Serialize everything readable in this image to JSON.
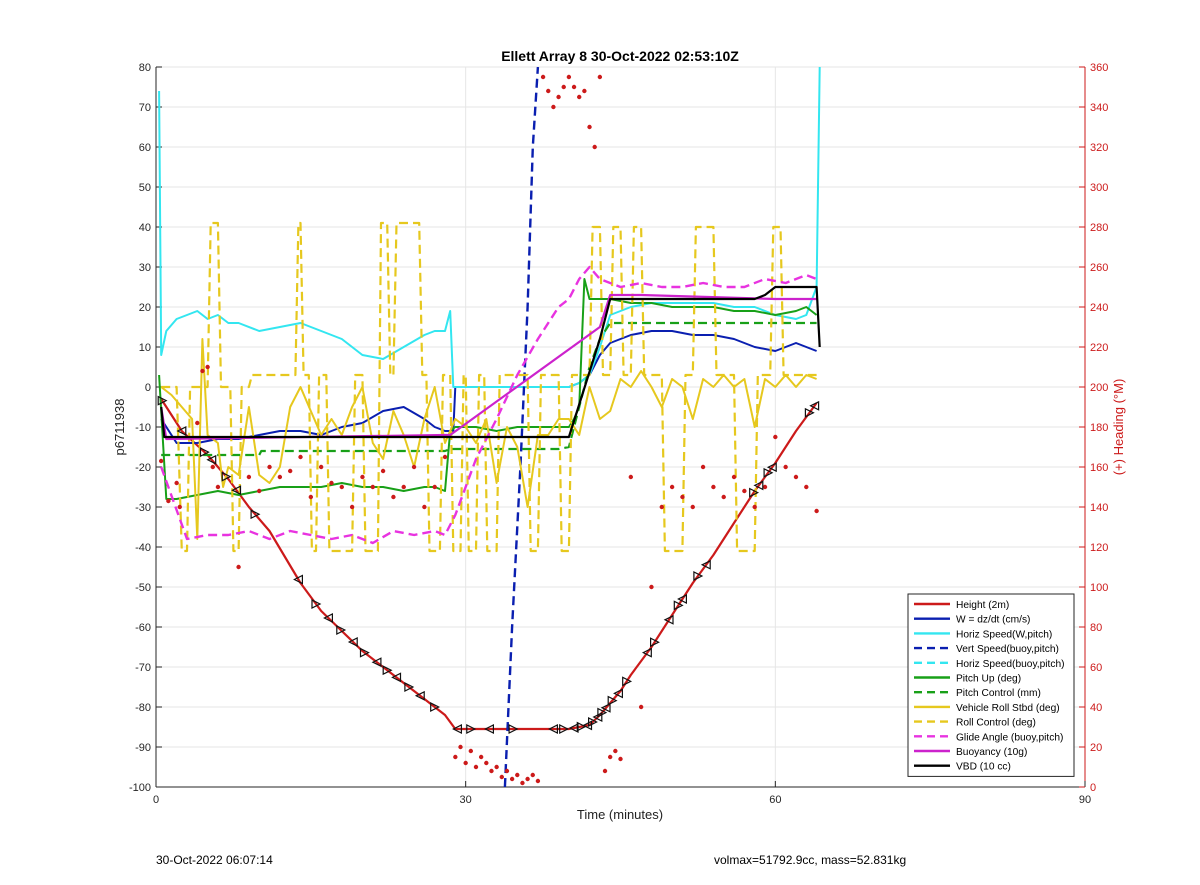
{
  "chart_data": {
    "type": "line",
    "title": "Ellett Array 8 30-Oct-2022 02:53:10Z",
    "xlabel": "Time (minutes)",
    "ylabel": "p6711938",
    "y2label": "(+) Heading (°M)",
    "xlim": [
      0,
      90
    ],
    "ylim": [
      -100,
      80
    ],
    "y2lim": [
      0,
      360
    ],
    "xticks": [
      0,
      30,
      60,
      90
    ],
    "yticks": [
      -100,
      -90,
      -80,
      -70,
      -60,
      -50,
      -40,
      -30,
      -20,
      -10,
      0,
      10,
      20,
      30,
      40,
      50,
      60,
      70,
      80
    ],
    "y2ticks": [
      0,
      20,
      40,
      60,
      80,
      100,
      120,
      140,
      160,
      180,
      200,
      220,
      240,
      260,
      280,
      300,
      320,
      340,
      360
    ],
    "grid": true,
    "legend_position": "bottom-right",
    "colors": {
      "height": "#cc1a1a",
      "w": "#0a1fb0",
      "horiz": "#33e6f0",
      "pitch": "#18a018",
      "roll": "#e6c81e",
      "glide": "#e833e0",
      "buoy": "#cc22cc",
      "vbd": "#000000",
      "heading": "#cc1a1a",
      "right_axis": "#cc1a1a"
    },
    "series": [
      {
        "name": "Height (2m)",
        "color": "#cc1a1a",
        "dash": false,
        "width": 2.2,
        "x": [
          0.5,
          2.5,
          5,
          7,
          9,
          11,
          14,
          16,
          18,
          20,
          22,
          24,
          26,
          28,
          29,
          33,
          38,
          40,
          42,
          43,
          44,
          45,
          46,
          48,
          50,
          52,
          54,
          56,
          58,
          60,
          62,
          64
        ],
        "y": [
          -3,
          -11,
          -17,
          -23,
          -30,
          -36,
          -49,
          -56,
          -61,
          -66,
          -70,
          -74,
          -78,
          -82,
          -85.5,
          -85.5,
          -85.5,
          -85.5,
          -84.5,
          -82,
          -79,
          -76,
          -72,
          -65,
          -57,
          -49,
          -42,
          -34,
          -26,
          -19,
          -11,
          -4
        ]
      },
      {
        "name": "W = dz/dt (cm/s)",
        "color": "#0a1fb0",
        "dash": false,
        "width": 2,
        "x": [
          0.5,
          2,
          4,
          6,
          8,
          10,
          12,
          14,
          16,
          18,
          20,
          22,
          24,
          26,
          27,
          28,
          28.8,
          29,
          32,
          35,
          38,
          40,
          41,
          42,
          43,
          44,
          46,
          48,
          50,
          52,
          54,
          56,
          58,
          60,
          62,
          64
        ],
        "y": [
          -8,
          -14,
          -14,
          -13,
          -13,
          -12,
          -11,
          -11,
          -12,
          -10,
          -9,
          -6,
          -5,
          -8,
          -10,
          -11,
          -11,
          0,
          0,
          0,
          0,
          0,
          1,
          3,
          8,
          11,
          13,
          14,
          14,
          13,
          13,
          12,
          10,
          9,
          11,
          9
        ]
      },
      {
        "name": "Horiz Speed(W,pitch)",
        "color": "#33e6f0",
        "dash": false,
        "width": 2,
        "x": [
          0.3,
          0.5,
          1,
          2,
          3,
          4,
          5,
          6,
          7,
          8,
          10,
          12,
          14,
          16,
          18,
          20,
          22,
          24,
          26,
          27,
          28,
          28.5,
          28.8,
          29,
          32,
          35,
          38,
          40,
          41,
          42,
          43,
          44,
          46,
          48,
          50,
          52,
          54,
          56,
          58,
          60,
          62,
          63,
          64,
          64.3
        ],
        "y": [
          74,
          8,
          14,
          17,
          18,
          19,
          17,
          18,
          16,
          16,
          14,
          15,
          16,
          14,
          12,
          8,
          7,
          10,
          13,
          14,
          14,
          19,
          0,
          0,
          0,
          0,
          0,
          0,
          1,
          3,
          10,
          18,
          20,
          21,
          21,
          21,
          21,
          20,
          20,
          18,
          17,
          18,
          25,
          80
        ]
      },
      {
        "name": "Vert Speed(buoy,pitch)",
        "color": "#0a1fb0",
        "dash": true,
        "width": 2.4,
        "x": [
          33.8,
          34.5,
          35.3,
          36,
          36.5,
          37
        ],
        "y": [
          -100,
          -60,
          -20,
          20,
          60,
          80
        ]
      },
      {
        "name": "Horiz Speed(buoy,pitch)",
        "color": "#33e6f0",
        "dash": true,
        "width": 2,
        "x": [],
        "y": []
      },
      {
        "name": "Pitch Up (deg)",
        "color": "#18a018",
        "dash": false,
        "width": 2,
        "x": [
          0.3,
          1,
          2,
          4,
          6,
          8,
          10,
          12,
          14,
          16,
          18,
          20,
          22,
          24,
          26,
          27,
          28,
          28.5,
          29,
          31,
          33,
          35,
          37,
          39,
          40,
          40.5,
          41,
          41.5,
          42,
          44,
          46,
          48,
          50,
          52,
          54,
          56,
          58,
          60,
          62,
          63,
          64
        ],
        "y": [
          3,
          -28,
          -28,
          -27,
          -26,
          -27,
          -26,
          -25,
          -25,
          -25,
          -24,
          -25,
          -25,
          -26,
          -25,
          -25,
          -26,
          -11,
          -10,
          -10,
          -11,
          -10,
          -10,
          -10,
          -10,
          -8,
          -5,
          27,
          22,
          22,
          21,
          21,
          20,
          20,
          20,
          19,
          19,
          18,
          19,
          20,
          18
        ]
      },
      {
        "name": "Pitch Control (mm)",
        "color": "#18a018",
        "dash": true,
        "width": 2.2,
        "x": [
          0.5,
          10,
          10.2,
          28,
          28.5,
          39,
          40,
          41,
          42,
          43,
          44,
          64
        ],
        "y": [
          -17,
          -17,
          -16,
          -16,
          -15.5,
          -15.5,
          -15,
          -5,
          5,
          12,
          16,
          16
        ]
      },
      {
        "name": "Vehicle Roll Stbd (deg)",
        "color": "#e6c81e",
        "dash": false,
        "width": 2,
        "x": [
          0.5,
          1.5,
          2.5,
          3.5,
          4,
          4.5,
          5,
          6,
          6.5,
          7,
          8,
          9,
          10,
          11,
          12,
          13,
          14,
          15,
          16,
          17,
          18,
          19,
          20,
          21,
          22,
          23,
          24,
          25,
          26,
          27,
          28,
          29,
          30,
          31,
          32,
          33,
          34,
          35,
          36,
          37,
          38,
          39,
          40,
          41,
          42,
          43,
          44,
          45,
          46,
          47,
          48,
          49,
          50,
          51,
          52,
          53,
          54,
          55,
          56,
          57,
          58,
          59,
          60,
          61,
          62,
          63,
          64
        ],
        "y": [
          0,
          -2,
          -5,
          -8,
          -38,
          12,
          -12,
          -14,
          -25,
          -20,
          -22,
          -5,
          -22,
          -24,
          -20,
          -5,
          0,
          -6,
          -12,
          -8,
          -12,
          -5,
          0,
          -14,
          -18,
          -6,
          -12,
          -20,
          -8,
          0,
          -14,
          -8,
          -10,
          -14,
          -8,
          -24,
          -10,
          -15,
          -30,
          -12,
          -12,
          -8,
          -8,
          -12,
          0,
          -8,
          -6,
          2,
          0,
          4,
          0,
          -5,
          2,
          0,
          -8,
          2,
          0,
          3,
          0,
          2,
          -10,
          2,
          0,
          3,
          0,
          3,
          2
        ]
      },
      {
        "name": "Roll Control (deg)",
        "color": "#e6c81e",
        "dash": true,
        "width": 2.2,
        "x": [
          0.5,
          2,
          2.5,
          3,
          3.3,
          5,
          5.3,
          6,
          6.3,
          7.2,
          7.5,
          8,
          8.3,
          9,
          9.3,
          13.5,
          13.8,
          14,
          14.3,
          14.8,
          15.1,
          15.5,
          15.8,
          16.5,
          16.8,
          19,
          19.3,
          20,
          20.3,
          21.5,
          21.8,
          22.4,
          22.7,
          23,
          23.3,
          25.5,
          25.8,
          26.2,
          26.5,
          27.5,
          27.8,
          28.5,
          28.8,
          29.5,
          29.8,
          30,
          30.3,
          31,
          31.3,
          31.8,
          32.1,
          33,
          33.3,
          36,
          36.3,
          37,
          37.3,
          39,
          39.3,
          40,
          40.3,
          42,
          42.3,
          43,
          43.3,
          44,
          44.3,
          45,
          45.3,
          46,
          46.3,
          47,
          47.3,
          49,
          49.3,
          51,
          51.3,
          52,
          52.3,
          54,
          54.3,
          56,
          56.3,
          58,
          58.3,
          59.5,
          59.8,
          60.5,
          60.8,
          64
        ],
        "y": [
          0,
          0,
          -41,
          -41,
          0,
          0,
          41,
          41,
          0,
          0,
          -41,
          -41,
          0,
          0,
          3,
          3,
          41,
          41,
          3,
          3,
          -41,
          -41,
          3,
          3,
          -41,
          -41,
          3,
          3,
          -41,
          -41,
          41,
          41,
          3,
          3,
          41,
          41,
          3,
          3,
          -41,
          -41,
          3,
          3,
          -41,
          -41,
          3,
          3,
          -41,
          -41,
          3,
          3,
          -41,
          -41,
          3,
          3,
          -41,
          -41,
          3,
          3,
          -41,
          -41,
          3,
          3,
          40,
          40,
          3,
          3,
          40,
          40,
          3,
          3,
          40,
          40,
          3,
          3,
          -41,
          -41,
          3,
          3,
          40,
          40,
          3,
          3,
          -41,
          -41,
          3,
          3,
          40,
          40,
          3,
          3
        ]
      },
      {
        "name": "Glide Angle (buoy,pitch)",
        "color": "#e833e0",
        "dash": true,
        "width": 2.4,
        "x": [
          0.5,
          3,
          5,
          7,
          9,
          11,
          13,
          15,
          17,
          19,
          21,
          23,
          25,
          27,
          28,
          29,
          31,
          33,
          35,
          37,
          39,
          40,
          41,
          42,
          43,
          45,
          47,
          49,
          51,
          53,
          55,
          57,
          59,
          61,
          63,
          64
        ],
        "y": [
          -20,
          -38,
          -37,
          -37,
          -36,
          -38,
          -36,
          -37,
          -38,
          -37,
          -39,
          -36,
          -37,
          -36,
          -37,
          -32,
          -18,
          -8,
          3,
          12,
          20,
          22,
          27,
          30,
          27,
          25,
          26,
          25,
          25,
          26,
          25,
          25,
          27,
          26,
          28,
          27
        ]
      },
      {
        "name": "Buoyancy (10g)",
        "color": "#cc22cc",
        "dash": false,
        "width": 2.2,
        "x": [
          0.5,
          1,
          28,
          28.5,
          43,
          44,
          47,
          60,
          64
        ],
        "y": [
          -5,
          -13,
          -12,
          -12,
          15,
          23,
          23,
          22,
          22
        ]
      },
      {
        "name": "VBD (10 cc)",
        "color": "#000000",
        "dash": false,
        "width": 2.2,
        "x": [
          0.5,
          0.8,
          28,
          39,
          40,
          43,
          44,
          58,
          59,
          60,
          64,
          64.3
        ],
        "y": [
          -5,
          -12.5,
          -12.5,
          -12.5,
          -12.5,
          12,
          22,
          22,
          23,
          25,
          25,
          10
        ]
      }
    ],
    "heading": {
      "name": "Heading",
      "axis": "right",
      "color": "#cc1a1a",
      "x": [
        0.5,
        1.2,
        2,
        2.3,
        4,
        4.5,
        5,
        5.5,
        6,
        8,
        9,
        10,
        11,
        12,
        13,
        14,
        15,
        16,
        17,
        18,
        19,
        20,
        21,
        22,
        23,
        24,
        25,
        26,
        27,
        28,
        29,
        29.5,
        30,
        30.5,
        31,
        31.5,
        32,
        32.5,
        33,
        33.5,
        34,
        34.5,
        35,
        35.5,
        36,
        36.5,
        37,
        37.5,
        38,
        38.5,
        39,
        39.5,
        40,
        40.5,
        41,
        41.5,
        42,
        42.5,
        43,
        43.5,
        44,
        44.5,
        45,
        46,
        47,
        48,
        49,
        50,
        51,
        52,
        53,
        54,
        55,
        56,
        57,
        58,
        59,
        60,
        61,
        62,
        63,
        64
      ],
      "y": [
        163,
        143,
        152,
        140,
        182,
        208,
        210,
        160,
        150,
        110,
        155,
        148,
        160,
        155,
        158,
        165,
        145,
        160,
        152,
        150,
        140,
        155,
        150,
        158,
        145,
        150,
        160,
        140,
        150,
        165,
        15,
        20,
        12,
        18,
        10,
        15,
        12,
        8,
        10,
        5,
        8,
        4,
        6,
        2,
        4,
        6,
        3,
        355,
        348,
        340,
        345,
        350,
        355,
        350,
        345,
        348,
        330,
        320,
        355,
        8,
        15,
        18,
        14,
        155,
        40,
        100,
        140,
        150,
        145,
        140,
        160,
        150,
        145,
        155,
        148,
        140,
        150,
        175,
        160,
        155,
        150,
        138
      ]
    },
    "legend": [
      {
        "label": "Height (2m)",
        "color": "#cc1a1a",
        "dash": false
      },
      {
        "label": "W = dz/dt (cm/s)",
        "color": "#0a1fb0",
        "dash": false
      },
      {
        "label": "Horiz Speed(W,pitch)",
        "color": "#33e6f0",
        "dash": false
      },
      {
        "label": "Vert Speed(buoy,pitch)",
        "color": "#0a1fb0",
        "dash": true
      },
      {
        "label": "Horiz Speed(buoy,pitch)",
        "color": "#33e6f0",
        "dash": true
      },
      {
        "label": "Pitch Up (deg)",
        "color": "#18a018",
        "dash": false
      },
      {
        "label": "Pitch Control (mm)",
        "color": "#18a018",
        "dash": true
      },
      {
        "label": "Vehicle Roll Stbd (deg)",
        "color": "#e6c81e",
        "dash": false
      },
      {
        "label": "Roll Control (deg)",
        "color": "#e6c81e",
        "dash": true
      },
      {
        "label": "Glide Angle (buoy,pitch)",
        "color": "#e833e0",
        "dash": true
      },
      {
        "label": "Buoyancy (10g)",
        "color": "#cc22cc",
        "dash": false
      },
      {
        "label": "VBD (10 cc)",
        "color": "#000000",
        "dash": false
      }
    ]
  },
  "footer": {
    "left": "30-Oct-2022 06:07:14",
    "right": "volmax=51792.9cc, mass=52.831kg"
  }
}
